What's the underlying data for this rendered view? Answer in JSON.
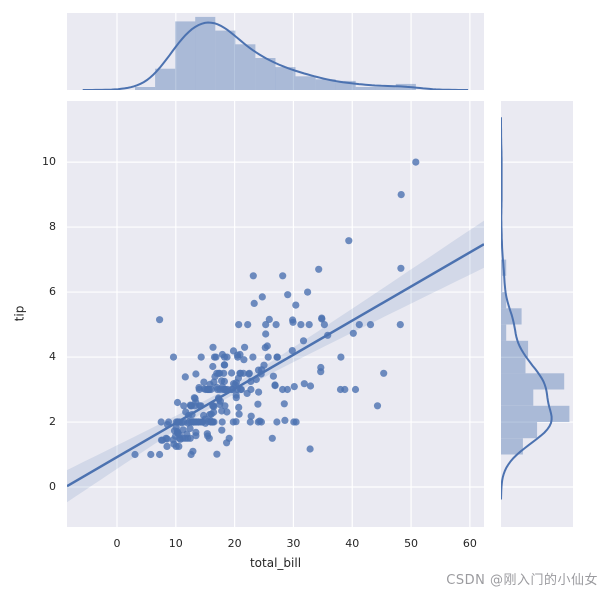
{
  "figure": {
    "background": "#ffffff"
  },
  "watermark": {
    "text": "CSDN @刚入门的小仙女",
    "color": "#9b9b9f"
  },
  "axes": {
    "xlabel": "total_bill",
    "ylabel": "tip",
    "x_tick_values": [
      0,
      10,
      20,
      30,
      40,
      50,
      60
    ],
    "x_tick_labels": [
      "0",
      "10",
      "20",
      "30",
      "40",
      "50",
      "60"
    ],
    "y_tick_values": [
      0,
      2,
      4,
      6,
      8,
      10
    ],
    "y_tick_labels": [
      "0",
      "2",
      "4",
      "6",
      "8",
      "10"
    ]
  },
  "style": {
    "accent": "#4c72b0",
    "panel_bg": "#eaeaf2",
    "grid_color": "#ffffff",
    "hist_fill": "rgba(76,114,176,0.4)",
    "band_fill": "rgba(76,114,176,0.15)",
    "tick_color": "#262626",
    "scatter_opacity": 0.8
  },
  "chart_data": {
    "type": "scatter",
    "dataset": "tips",
    "xlabel": "total_bill",
    "ylabel": "tip",
    "xlim": [
      -8.5,
      62.4
    ],
    "ylim": [
      -1.23,
      11.88
    ],
    "grid": true,
    "regression": {
      "show": true,
      "ci_percent": 95
    },
    "marginal_top": {
      "type": "histogram_kde",
      "bins": 14
    },
    "marginal_right": {
      "type": "histogram_kde",
      "bins": 18
    },
    "points": [
      [
        16.99,
        1.01
      ],
      [
        10.34,
        1.66
      ],
      [
        21.01,
        3.5
      ],
      [
        23.68,
        3.31
      ],
      [
        24.59,
        3.61
      ],
      [
        25.29,
        4.71
      ],
      [
        8.77,
        2
      ],
      [
        26.88,
        3.12
      ],
      [
        15.04,
        1.96
      ],
      [
        14.78,
        3.23
      ],
      [
        10.27,
        1.71
      ],
      [
        35.26,
        5
      ],
      [
        15.42,
        1.57
      ],
      [
        18.43,
        3
      ],
      [
        14.83,
        3.02
      ],
      [
        21.58,
        3.92
      ],
      [
        10.33,
        1.67
      ],
      [
        16.29,
        3.71
      ],
      [
        16.97,
        3.5
      ],
      [
        20.65,
        3.35
      ],
      [
        17.92,
        4.08
      ],
      [
        20.29,
        2.75
      ],
      [
        15.77,
        2.23
      ],
      [
        39.42,
        7.58
      ],
      [
        19.82,
        3.18
      ],
      [
        17.81,
        2.34
      ],
      [
        13.37,
        2
      ],
      [
        12.69,
        2
      ],
      [
        21.7,
        4.3
      ],
      [
        19.65,
        3
      ],
      [
        9.55,
        1.45
      ],
      [
        18.35,
        2.5
      ],
      [
        15.06,
        3
      ],
      [
        20.69,
        2.45
      ],
      [
        17.78,
        3.27
      ],
      [
        24.06,
        3.6
      ],
      [
        16.31,
        2
      ],
      [
        16.93,
        3.07
      ],
      [
        18.69,
        2.31
      ],
      [
        31.27,
        5
      ],
      [
        16.04,
        2.24
      ],
      [
        17.46,
        2.54
      ],
      [
        13.94,
        3.06
      ],
      [
        9.68,
        1.32
      ],
      [
        30.4,
        5.6
      ],
      [
        18.29,
        3
      ],
      [
        22.23,
        5
      ],
      [
        32.4,
        6
      ],
      [
        28.55,
        2.05
      ],
      [
        18.04,
        3
      ],
      [
        12.54,
        2.5
      ],
      [
        10.29,
        2.6
      ],
      [
        34.81,
        5.2
      ],
      [
        9.94,
        1.56
      ],
      [
        25.56,
        4.34
      ],
      [
        19.49,
        3.51
      ],
      [
        38.01,
        3
      ],
      [
        26.41,
        1.5
      ],
      [
        11.24,
        1.76
      ],
      [
        48.27,
        6.73
      ],
      [
        20.29,
        3.21
      ],
      [
        13.81,
        2
      ],
      [
        11.02,
        1.98
      ],
      [
        18.29,
        3.76
      ],
      [
        17.59,
        2.64
      ],
      [
        20.08,
        3.15
      ],
      [
        16.45,
        2.47
      ],
      [
        3.07,
        1
      ],
      [
        20.23,
        2.01
      ],
      [
        15.01,
        2.09
      ],
      [
        12.02,
        1.97
      ],
      [
        17.07,
        3
      ],
      [
        26.86,
        3.14
      ],
      [
        25.28,
        5
      ],
      [
        14.73,
        2.2
      ],
      [
        10.51,
        1.25
      ],
      [
        17.92,
        3.08
      ],
      [
        27.2,
        4
      ],
      [
        22.76,
        3
      ],
      [
        17.29,
        2.71
      ],
      [
        19.44,
        3
      ],
      [
        16.66,
        3.4
      ],
      [
        10.07,
        1.83
      ],
      [
        32.68,
        5
      ],
      [
        15.98,
        2.03
      ],
      [
        34.83,
        5.17
      ],
      [
        13.03,
        2
      ],
      [
        18.28,
        4
      ],
      [
        24.71,
        5.85
      ],
      [
        21.16,
        3
      ],
      [
        28.97,
        3
      ],
      [
        22.49,
        3.5
      ],
      [
        5.75,
        1
      ],
      [
        16.32,
        4.3
      ],
      [
        22.75,
        3.25
      ],
      [
        40.17,
        4.73
      ],
      [
        27.28,
        4
      ],
      [
        12.03,
        1.5
      ],
      [
        21.01,
        3
      ],
      [
        12.46,
        1.5
      ],
      [
        11.35,
        2.5
      ],
      [
        15.38,
        3
      ],
      [
        44.3,
        2.5
      ],
      [
        22.42,
        3.48
      ],
      [
        20.92,
        4.08
      ],
      [
        15.36,
        1.64
      ],
      [
        20.49,
        4.06
      ],
      [
        25.21,
        4.29
      ],
      [
        18.24,
        3.76
      ],
      [
        14.31,
        4
      ],
      [
        14,
        3
      ],
      [
        7.25,
        1
      ],
      [
        38.07,
        4
      ],
      [
        23.95,
        2.55
      ],
      [
        25.71,
        4
      ],
      [
        17.31,
        3.5
      ],
      [
        29.93,
        5.07
      ],
      [
        10.65,
        1.5
      ],
      [
        12.43,
        1.8
      ],
      [
        24.08,
        2.92
      ],
      [
        11.69,
        2.31
      ],
      [
        13.42,
        1.68
      ],
      [
        14.26,
        2.5
      ],
      [
        15.95,
        2
      ],
      [
        12.48,
        2.52
      ],
      [
        29.8,
        4.2
      ],
      [
        8.52,
        1.48
      ],
      [
        14.52,
        2
      ],
      [
        11.38,
        2
      ],
      [
        22.82,
        2.18
      ],
      [
        19.08,
        1.5
      ],
      [
        20.27,
        2.83
      ],
      [
        11.17,
        1.5
      ],
      [
        12.26,
        2
      ],
      [
        18.26,
        3.25
      ],
      [
        8.51,
        1.25
      ],
      [
        10.33,
        2
      ],
      [
        14.15,
        2
      ],
      [
        16,
        2
      ],
      [
        13.16,
        2.75
      ],
      [
        17.47,
        3.5
      ],
      [
        34.3,
        6.7
      ],
      [
        41.19,
        5
      ],
      [
        27.05,
        5
      ],
      [
        16.43,
        2.3
      ],
      [
        8.35,
        1.5
      ],
      [
        18.64,
        1.36
      ],
      [
        11.87,
        1.63
      ],
      [
        9.78,
        1.73
      ],
      [
        7.51,
        2
      ],
      [
        14.07,
        2.5
      ],
      [
        13.13,
        2
      ],
      [
        17.26,
        2.74
      ],
      [
        24.55,
        2
      ],
      [
        19.77,
        2
      ],
      [
        29.85,
        5.14
      ],
      [
        48.17,
        5
      ],
      [
        25,
        3.75
      ],
      [
        13.39,
        2.61
      ],
      [
        16.49,
        2
      ],
      [
        21.5,
        3.5
      ],
      [
        12.66,
        2.5
      ],
      [
        16.21,
        2
      ],
      [
        13.81,
        2
      ],
      [
        17.51,
        3
      ],
      [
        24.52,
        3.48
      ],
      [
        20.76,
        2.24
      ],
      [
        31.71,
        4.5
      ],
      [
        10.59,
        1.61
      ],
      [
        10.63,
        2
      ],
      [
        50.81,
        10
      ],
      [
        15.81,
        3.16
      ],
      [
        7.25,
        5.15
      ],
      [
        31.85,
        3.18
      ],
      [
        16.82,
        4
      ],
      [
        32.9,
        3.11
      ],
      [
        17.89,
        2
      ],
      [
        14.48,
        2
      ],
      [
        9.6,
        4
      ],
      [
        34.63,
        3.55
      ],
      [
        34.65,
        3.68
      ],
      [
        23.33,
        5.65
      ],
      [
        45.35,
        3.5
      ],
      [
        23.17,
        6.5
      ],
      [
        40.55,
        3
      ],
      [
        20.69,
        5
      ],
      [
        20.9,
        3.5
      ],
      [
        30.46,
        2
      ],
      [
        18.15,
        3.5
      ],
      [
        23.1,
        4
      ],
      [
        15.69,
        1.5
      ],
      [
        19.81,
        4.19
      ],
      [
        28.44,
        2.56
      ],
      [
        15.48,
        2.02
      ],
      [
        16.58,
        4
      ],
      [
        7.56,
        1.44
      ],
      [
        10.34,
        2
      ],
      [
        43.11,
        5
      ],
      [
        13,
        2
      ],
      [
        13.51,
        2
      ],
      [
        18.71,
        4
      ],
      [
        12.74,
        2.01
      ],
      [
        13,
        2
      ],
      [
        16.4,
        2.5
      ],
      [
        20.53,
        4
      ],
      [
        16.47,
        3.23
      ],
      [
        26.59,
        3.41
      ],
      [
        38.73,
        3
      ],
      [
        24.27,
        2.03
      ],
      [
        12.76,
        2.23
      ],
      [
        30.06,
        2
      ],
      [
        25.89,
        5.16
      ],
      [
        48.33,
        9
      ],
      [
        13.27,
        2.5
      ],
      [
        28.17,
        6.5
      ],
      [
        12.9,
        1.1
      ],
      [
        28.15,
        3
      ],
      [
        11.59,
        1.5
      ],
      [
        7.74,
        1.44
      ],
      [
        30.14,
        3.09
      ],
      [
        12.16,
        2.2
      ],
      [
        13.42,
        3.48
      ],
      [
        8.58,
        1.92
      ],
      [
        15.98,
        3
      ],
      [
        13.42,
        1.58
      ],
      [
        16.27,
        2.5
      ],
      [
        10.09,
        2
      ],
      [
        20.45,
        3
      ],
      [
        13.28,
        2.72
      ],
      [
        22.12,
        2.88
      ],
      [
        24.01,
        2
      ],
      [
        15.69,
        3
      ],
      [
        11.61,
        3.39
      ],
      [
        10.77,
        1.47
      ],
      [
        15.53,
        3
      ],
      [
        10.07,
        1.25
      ],
      [
        12.6,
        1
      ],
      [
        32.83,
        1.17
      ],
      [
        35.83,
        4.67
      ],
      [
        29.03,
        5.92
      ],
      [
        27.18,
        2
      ],
      [
        22.67,
        2
      ],
      [
        17.82,
        1.75
      ],
      [
        18.78,
        3
      ]
    ]
  }
}
